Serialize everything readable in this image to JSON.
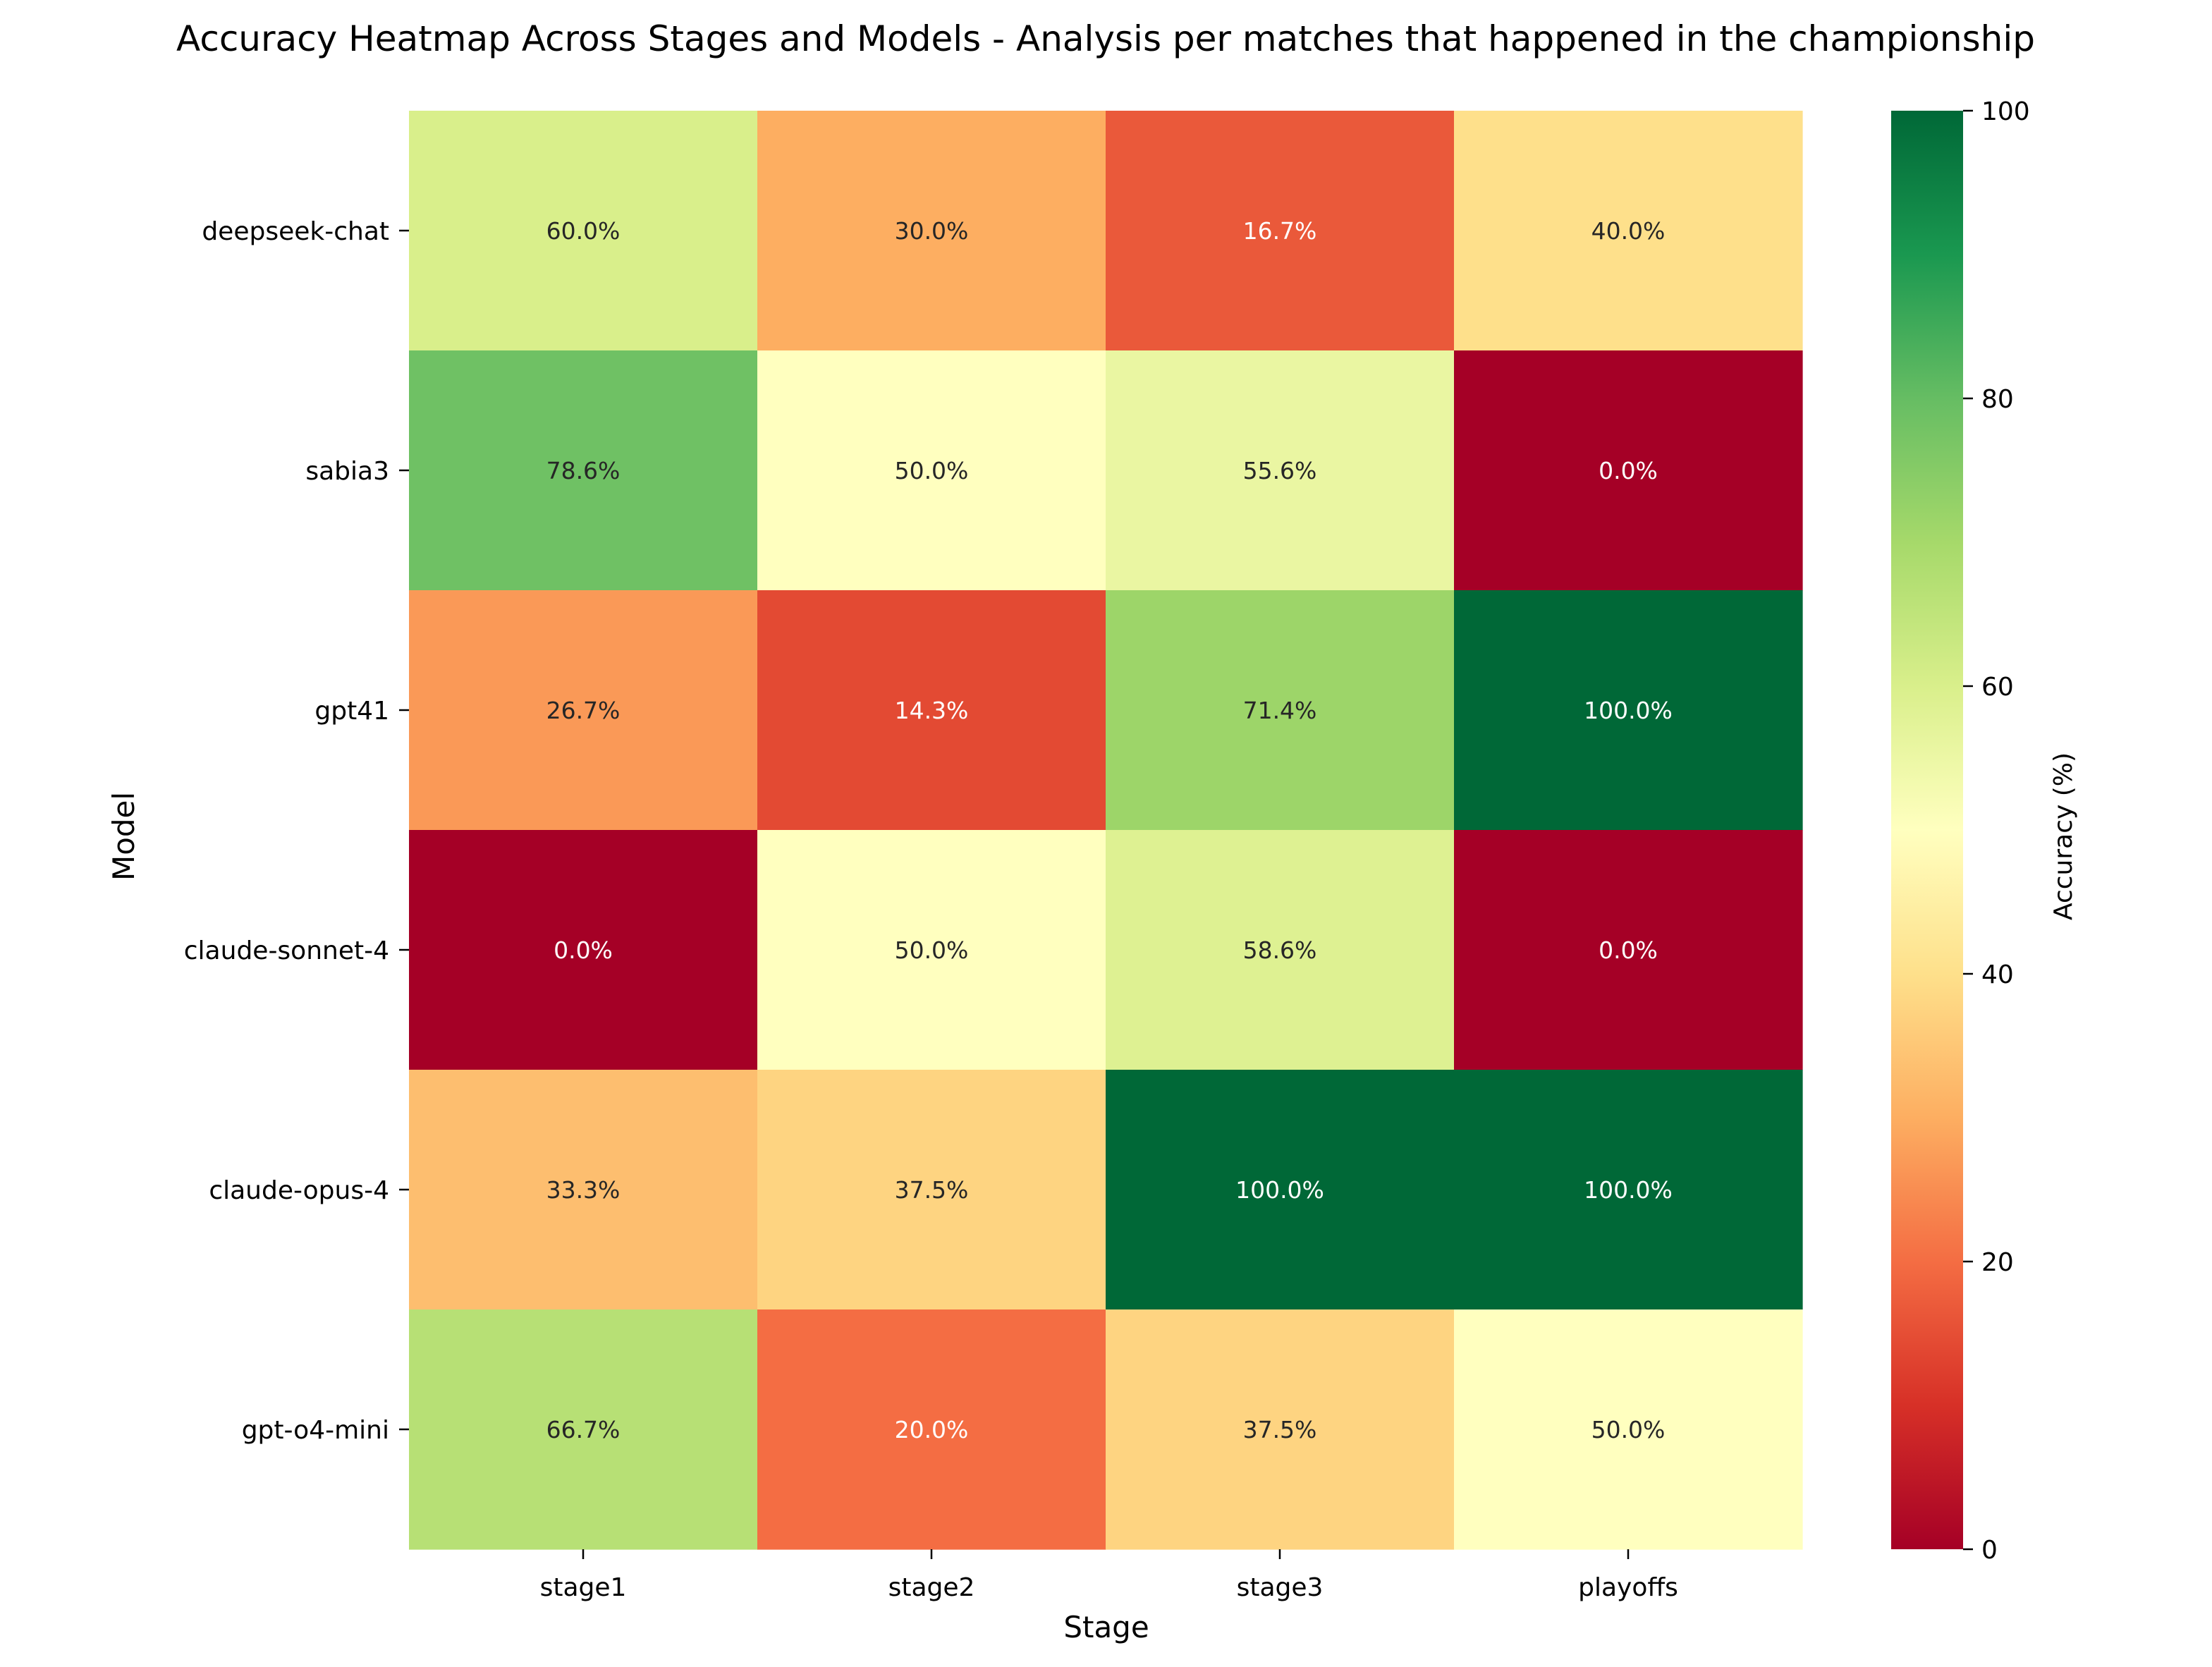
{
  "chart_data": {
    "type": "heatmap",
    "title": "Accuracy Heatmap Across Stages and Models - Analysis per matches that happened in the championship",
    "xlabel": "Stage",
    "ylabel": "Model",
    "x_categories": [
      "stage1",
      "stage2",
      "stage3",
      "playoffs"
    ],
    "y_categories": [
      "deepseek-chat",
      "sabia3",
      "gpt41",
      "claude-sonnet-4",
      "claude-opus-4",
      "gpt-o4-mini"
    ],
    "values": [
      [
        60.0,
        30.0,
        16.7,
        40.0
      ],
      [
        78.6,
        50.0,
        55.6,
        0.0
      ],
      [
        26.7,
        14.3,
        71.4,
        100.0
      ],
      [
        0.0,
        50.0,
        58.6,
        0.0
      ],
      [
        33.3,
        37.5,
        100.0,
        100.0
      ],
      [
        66.7,
        20.0,
        37.5,
        50.0
      ]
    ],
    "cell_labels": [
      [
        "60.0%",
        "30.0%",
        "16.7%",
        "40.0%"
      ],
      [
        "78.6%",
        "50.0%",
        "55.6%",
        "0.0%"
      ],
      [
        "26.7%",
        "14.3%",
        "71.4%",
        "100.0%"
      ],
      [
        "0.0%",
        "50.0%",
        "58.6%",
        "0.0%"
      ],
      [
        "33.3%",
        "37.5%",
        "100.0%",
        "100.0%"
      ],
      [
        "66.7%",
        "20.0%",
        "37.5%",
        "50.0%"
      ]
    ],
    "colormap": "RdYlGn",
    "colormap_stops": [
      "#a50026",
      "#d73027",
      "#f46d43",
      "#fdae61",
      "#fee08b",
      "#ffffbf",
      "#d9ef8b",
      "#a6d96a",
      "#66bd63",
      "#1a9850",
      "#006837"
    ],
    "colorbar": {
      "label": "Accuracy (%)",
      "range": [
        0,
        100
      ],
      "ticks": [
        "0",
        "20",
        "40",
        "60",
        "80",
        "100"
      ]
    }
  }
}
